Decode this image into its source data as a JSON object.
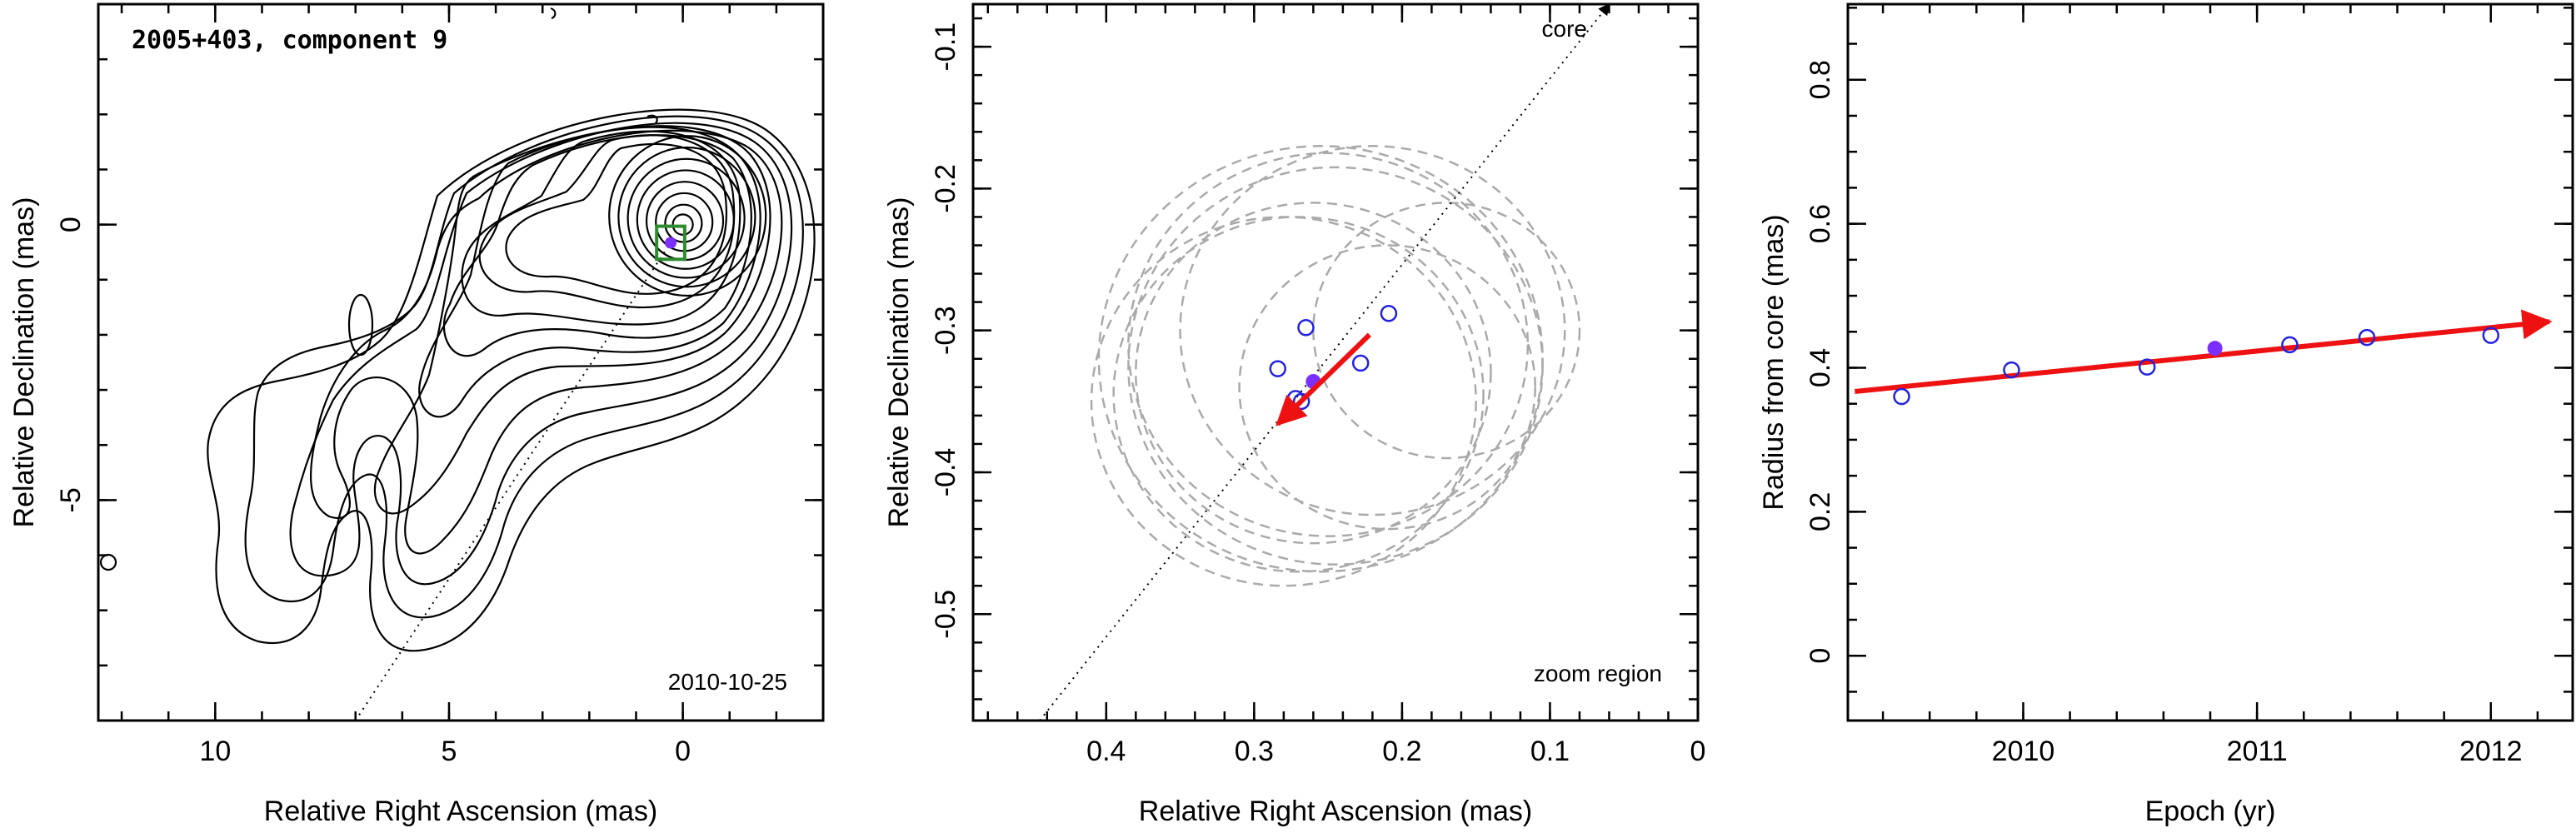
{
  "chart_data": [
    {
      "type": "contour",
      "title": "2005+403, component 9",
      "date_label": "2010-10-25",
      "xlabel": "Relative Right Ascension (mas)",
      "ylabel": "Relative Declination (mas)",
      "xlim": [
        12.5,
        -3
      ],
      "ylim": [
        -9,
        4
      ],
      "xticks": [
        10,
        5,
        0
      ],
      "yticks": [
        0,
        -5
      ],
      "component_marker": {
        "x": 0.26,
        "y": -0.33
      },
      "component_box_halfsize": 0.3,
      "jet_ridge": [
        [
          7.0,
          -9.0
        ],
        [
          0.2,
          -0.25
        ]
      ],
      "colors": {
        "contour": "#000000",
        "box": "#2e8b2e",
        "marker": "#7b2fff"
      }
    },
    {
      "type": "scatter",
      "xlabel": "Relative Right Ascension (mas)",
      "ylabel": "Relative Declination (mas)",
      "xlim": [
        0.49,
        0
      ],
      "ylim": [
        -0.575,
        -0.07
      ],
      "xticks": [
        0.4,
        0.3,
        0.2,
        0.1,
        0
      ],
      "yticks": [
        -0.1,
        -0.2,
        -0.3,
        -0.4,
        -0.5
      ],
      "core_label": "core",
      "zoom_label": "zoom region",
      "points": [
        {
          "x": 0.265,
          "y": -0.298
        },
        {
          "x": 0.284,
          "y": -0.327
        },
        {
          "x": 0.272,
          "y": -0.348
        },
        {
          "x": 0.268,
          "y": -0.35
        },
        {
          "x": 0.228,
          "y": -0.323
        },
        {
          "x": 0.209,
          "y": -0.288
        }
      ],
      "highlight_point": {
        "x": 0.26,
        "y": -0.336
      },
      "position_circles": [
        {
          "cx": 0.27,
          "cy": -0.345,
          "r": 0.125
        },
        {
          "cx": 0.255,
          "cy": -0.32,
          "r": 0.15
        },
        {
          "cx": 0.25,
          "cy": -0.31,
          "r": 0.135
        },
        {
          "cx": 0.245,
          "cy": -0.325,
          "r": 0.14
        },
        {
          "cx": 0.22,
          "cy": -0.3,
          "r": 0.13
        },
        {
          "cx": 0.28,
          "cy": -0.35,
          "r": 0.13
        },
        {
          "cx": 0.26,
          "cy": -0.33,
          "r": 0.12
        },
        {
          "cx": 0.21,
          "cy": -0.34,
          "r": 0.1
        },
        {
          "cx": 0.17,
          "cy": -0.3,
          "r": 0.09
        }
      ],
      "motion_vector": {
        "x0": 0.222,
        "y0": -0.303,
        "x1": 0.284,
        "y1": -0.366
      },
      "ridge_line": {
        "x0": 0.445,
        "y0": -0.575,
        "x1": 0.06,
        "y1": -0.07
      },
      "colors": {
        "points": "#2222dd",
        "highlight": "#7b2fff",
        "vector": "#ee1111",
        "circles": "#aaaaaa"
      }
    },
    {
      "type": "scatter",
      "xlabel": "Epoch (yr)",
      "ylabel": "Radius from core (mas)",
      "xlim": [
        2009.25,
        2012.35
      ],
      "ylim": [
        -0.09,
        0.905
      ],
      "xticks": [
        2010,
        2011,
        2012
      ],
      "yticks": [
        0,
        0.2,
        0.4,
        0.6,
        0.8
      ],
      "points": [
        {
          "x": 2009.48,
          "y": 0.36
        },
        {
          "x": 2009.95,
          "y": 0.397
        },
        {
          "x": 2010.53,
          "y": 0.401
        },
        {
          "x": 2011.14,
          "y": 0.432
        },
        {
          "x": 2011.47,
          "y": 0.442
        },
        {
          "x": 2012.0,
          "y": 0.445
        }
      ],
      "highlight_point": {
        "x": 2010.82,
        "y": 0.427
      },
      "fit_line": {
        "x0": 2009.28,
        "y0": 0.367,
        "x1": 2012.25,
        "y1": 0.464
      },
      "colors": {
        "points": "#2222dd",
        "highlight": "#7b2fff",
        "fit": "#ee1111"
      }
    }
  ]
}
